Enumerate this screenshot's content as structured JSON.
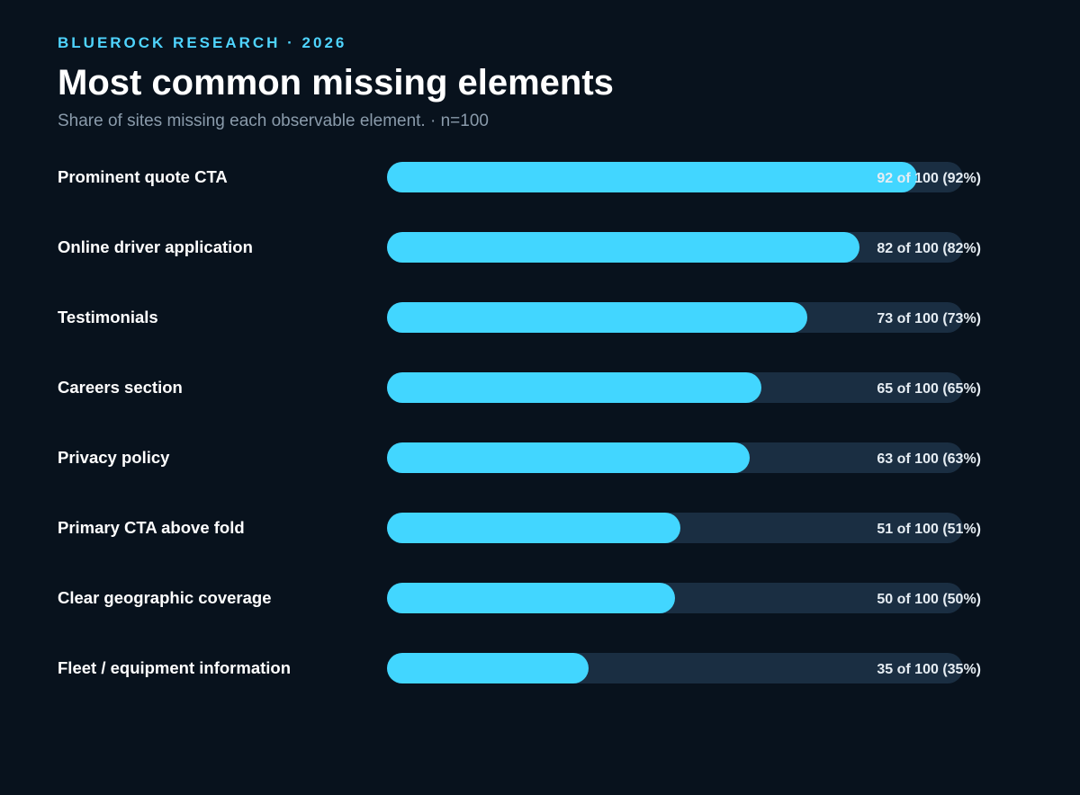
{
  "header": {
    "kicker": "BLUEROCK RESEARCH · 2026",
    "title": "Most common missing elements",
    "subtitle": "Share of sites missing each observable element. · n=100"
  },
  "colors": {
    "background": "#08121d",
    "accent": "#42d6ff",
    "track": "#1a2e42",
    "kicker": "#4fd4ff",
    "subtitle": "#8a9bab"
  },
  "chart_data": {
    "type": "bar",
    "orientation": "horizontal",
    "title": "Most common missing elements",
    "subtitle": "Share of sites missing each observable element. · n=100",
    "xlim": [
      0,
      100
    ],
    "grid": false,
    "categories": [
      "Prominent quote CTA",
      "Online driver application",
      "Testimonials",
      "Careers section",
      "Privacy policy",
      "Primary CTA above fold",
      "Clear geographic coverage",
      "Fleet / equipment information"
    ],
    "values": [
      92,
      82,
      73,
      65,
      63,
      51,
      50,
      35
    ],
    "value_labels": [
      "92 of 100 (92%)",
      "82 of 100 (82%)",
      "73 of 100 (73%)",
      "65 of 100 (65%)",
      "63 of 100 (63%)",
      "51 of 100 (51%)",
      "50 of 100 (50%)",
      "35 of 100 (35%)"
    ]
  }
}
